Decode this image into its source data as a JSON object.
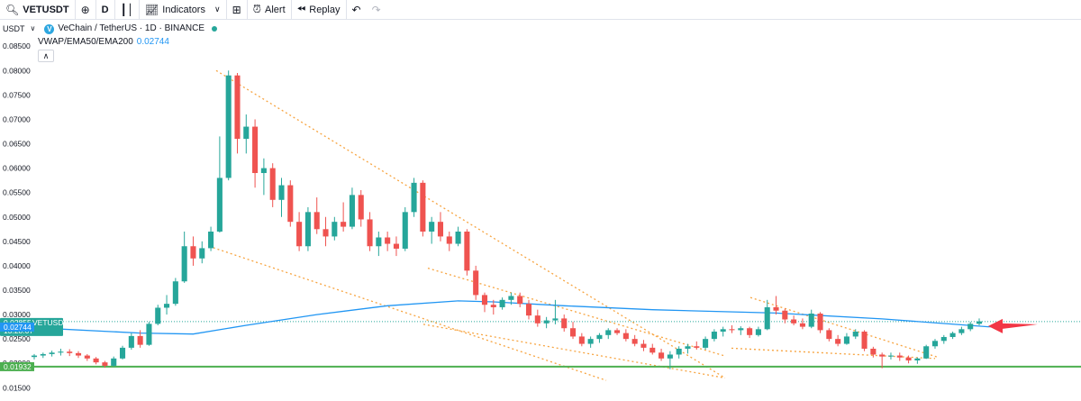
{
  "toolbar": {
    "symbol": "VETUSDT",
    "interval": "D",
    "indicators_label": "Indicators",
    "alert_label": "Alert",
    "replay_label": "Replay",
    "icons": [
      "search-icon",
      "add-symbol-icon",
      "chart-type-icon",
      "templates-icon",
      "alert-icon",
      "replay-icon",
      "undo-icon",
      "redo-icon"
    ]
  },
  "legend": {
    "ticker": "USDT",
    "title": "VeChain / TetherUS · 1D · BINANCE",
    "indicator_name": "VWAP/EMA50/EMA200",
    "indicator_value": "0.02744"
  },
  "colors": {
    "up": "#26a69a",
    "down": "#ef5350",
    "ema": "#2196f3",
    "trendline": "#f7a440",
    "support": "#4caf50",
    "arrow": "#f23645",
    "price_badge": "#26a69a"
  },
  "price_labels": {
    "current_price": "0.02855",
    "current_ticker": "VETUSDT",
    "countdown": "13:28:07",
    "ema_value": "0.02744",
    "support_value": "0.01932"
  },
  "chart_data": {
    "type": "candlestick",
    "ylim": [
      0.015,
      0.0855
    ],
    "y_ticks": [
      "0.08500",
      "0.08000",
      "0.07500",
      "0.07000",
      "0.06500",
      "0.06000",
      "0.05500",
      "0.05000",
      "0.04500",
      "0.04000",
      "0.03500",
      "0.03000",
      "0.02500",
      "0.02000",
      "0.01500"
    ],
    "support_level": 0.01932,
    "current_price": 0.02855,
    "ema_value": 0.02744,
    "candles": [
      [
        0.0213,
        0.0219,
        0.0208,
        0.0216
      ],
      [
        0.0216,
        0.0222,
        0.0211,
        0.0219
      ],
      [
        0.0219,
        0.0226,
        0.0214,
        0.0222
      ],
      [
        0.0222,
        0.023,
        0.0216,
        0.0224
      ],
      [
        0.0224,
        0.0229,
        0.0215,
        0.0221
      ],
      [
        0.0221,
        0.0225,
        0.0211,
        0.0216
      ],
      [
        0.0216,
        0.0219,
        0.0205,
        0.021
      ],
      [
        0.021,
        0.0213,
        0.0198,
        0.0202
      ],
      [
        0.0202,
        0.0205,
        0.0191,
        0.0195
      ],
      [
        0.0195,
        0.0214,
        0.0193,
        0.021
      ],
      [
        0.021,
        0.0236,
        0.0208,
        0.0232
      ],
      [
        0.0232,
        0.0262,
        0.0228,
        0.0256
      ],
      [
        0.0256,
        0.0268,
        0.0232,
        0.0238
      ],
      [
        0.0238,
        0.0285,
        0.0236,
        0.0281
      ],
      [
        0.0281,
        0.032,
        0.0278,
        0.0314
      ],
      [
        0.0314,
        0.034,
        0.03,
        0.0322
      ],
      [
        0.0322,
        0.0375,
        0.0318,
        0.0368
      ],
      [
        0.0368,
        0.047,
        0.0365,
        0.044
      ],
      [
        0.044,
        0.046,
        0.04,
        0.0415
      ],
      [
        0.0415,
        0.045,
        0.0405,
        0.0436
      ],
      [
        0.0436,
        0.048,
        0.043,
        0.047
      ],
      [
        0.047,
        0.0665,
        0.0468,
        0.058
      ],
      [
        0.058,
        0.08,
        0.0575,
        0.079
      ],
      [
        0.079,
        0.0795,
        0.063,
        0.066
      ],
      [
        0.066,
        0.071,
        0.063,
        0.0685
      ],
      [
        0.0685,
        0.07,
        0.056,
        0.059
      ],
      [
        0.059,
        0.062,
        0.0545,
        0.06
      ],
      [
        0.06,
        0.061,
        0.052,
        0.0535
      ],
      [
        0.0535,
        0.058,
        0.05,
        0.0565
      ],
      [
        0.0565,
        0.0575,
        0.048,
        0.049
      ],
      [
        0.049,
        0.051,
        0.043,
        0.044
      ],
      [
        0.044,
        0.052,
        0.043,
        0.051
      ],
      [
        0.051,
        0.054,
        0.0465,
        0.0475
      ],
      [
        0.0475,
        0.05,
        0.044,
        0.046
      ],
      [
        0.046,
        0.05,
        0.0452,
        0.049
      ],
      [
        0.049,
        0.053,
        0.047,
        0.048
      ],
      [
        0.048,
        0.056,
        0.0475,
        0.0545
      ],
      [
        0.0545,
        0.0555,
        0.048,
        0.0495
      ],
      [
        0.0495,
        0.051,
        0.043,
        0.044
      ],
      [
        0.044,
        0.047,
        0.042,
        0.0458
      ],
      [
        0.0458,
        0.047,
        0.043,
        0.0445
      ],
      [
        0.0445,
        0.046,
        0.042,
        0.0435
      ],
      [
        0.0435,
        0.052,
        0.043,
        0.051
      ],
      [
        0.051,
        0.058,
        0.05,
        0.057
      ],
      [
        0.057,
        0.0575,
        0.046,
        0.047
      ],
      [
        0.047,
        0.05,
        0.0445,
        0.049
      ],
      [
        0.049,
        0.051,
        0.045,
        0.046
      ],
      [
        0.046,
        0.047,
        0.043,
        0.0445
      ],
      [
        0.0445,
        0.048,
        0.044,
        0.047
      ],
      [
        0.047,
        0.0475,
        0.038,
        0.039
      ],
      [
        0.039,
        0.04,
        0.033,
        0.034
      ],
      [
        0.034,
        0.0345,
        0.0305,
        0.032
      ],
      [
        0.032,
        0.033,
        0.03,
        0.0315
      ],
      [
        0.0315,
        0.0335,
        0.031,
        0.033
      ],
      [
        0.033,
        0.0345,
        0.032,
        0.0338
      ],
      [
        0.0338,
        0.0345,
        0.0315,
        0.0322
      ],
      [
        0.0322,
        0.033,
        0.029,
        0.0298
      ],
      [
        0.0298,
        0.031,
        0.0275,
        0.0282
      ],
      [
        0.0282,
        0.0295,
        0.0272,
        0.0288
      ],
      [
        0.0288,
        0.033,
        0.028,
        0.0292
      ],
      [
        0.0292,
        0.03,
        0.0265,
        0.0272
      ],
      [
        0.0272,
        0.0285,
        0.025,
        0.0255
      ],
      [
        0.0255,
        0.0262,
        0.0235,
        0.024
      ],
      [
        0.024,
        0.0255,
        0.0232,
        0.025
      ],
      [
        0.025,
        0.0262,
        0.0242,
        0.0258
      ],
      [
        0.0258,
        0.0272,
        0.025,
        0.0268
      ],
      [
        0.0268,
        0.0272,
        0.0258,
        0.0262
      ],
      [
        0.0262,
        0.027,
        0.0245,
        0.025
      ],
      [
        0.025,
        0.0258,
        0.0235,
        0.024
      ],
      [
        0.024,
        0.0248,
        0.0225,
        0.0232
      ],
      [
        0.0232,
        0.024,
        0.0218,
        0.0222
      ],
      [
        0.0222,
        0.023,
        0.0205,
        0.021
      ],
      [
        0.021,
        0.0225,
        0.0188,
        0.0218
      ],
      [
        0.0218,
        0.0235,
        0.021,
        0.023
      ],
      [
        0.023,
        0.024,
        0.022,
        0.0235
      ],
      [
        0.0235,
        0.0245,
        0.0228,
        0.0232
      ],
      [
        0.0232,
        0.0255,
        0.0228,
        0.025
      ],
      [
        0.025,
        0.027,
        0.0245,
        0.0265
      ],
      [
        0.0265,
        0.0275,
        0.0255,
        0.027
      ],
      [
        0.027,
        0.0278,
        0.0262,
        0.0268
      ],
      [
        0.0268,
        0.0276,
        0.0258,
        0.0272
      ],
      [
        0.0272,
        0.0275,
        0.0252,
        0.0258
      ],
      [
        0.0258,
        0.0275,
        0.0255,
        0.027
      ],
      [
        0.027,
        0.033,
        0.0268,
        0.0315
      ],
      [
        0.0315,
        0.0338,
        0.03,
        0.0308
      ],
      [
        0.0308,
        0.0312,
        0.0282,
        0.029
      ],
      [
        0.029,
        0.0298,
        0.0278,
        0.0282
      ],
      [
        0.0282,
        0.0292,
        0.027,
        0.0275
      ],
      [
        0.0275,
        0.031,
        0.0272,
        0.0302
      ],
      [
        0.0302,
        0.0305,
        0.0262,
        0.0268
      ],
      [
        0.0268,
        0.0272,
        0.0245,
        0.025
      ],
      [
        0.025,
        0.0258,
        0.0235,
        0.024
      ],
      [
        0.024,
        0.0262,
        0.0238,
        0.0255
      ],
      [
        0.0255,
        0.027,
        0.025,
        0.0265
      ],
      [
        0.0265,
        0.0268,
        0.0225,
        0.023
      ],
      [
        0.023,
        0.0234,
        0.0212,
        0.0218
      ],
      [
        0.0218,
        0.0222,
        0.019,
        0.0214
      ],
      [
        0.0214,
        0.0222,
        0.0208,
        0.0216
      ],
      [
        0.0216,
        0.0222,
        0.0205,
        0.0212
      ],
      [
        0.0212,
        0.0216,
        0.02,
        0.0206
      ],
      [
        0.0206,
        0.0212,
        0.0199,
        0.021
      ],
      [
        0.021,
        0.0238,
        0.0209,
        0.0235
      ],
      [
        0.0235,
        0.025,
        0.023,
        0.0246
      ],
      [
        0.0246,
        0.0258,
        0.024,
        0.0254
      ],
      [
        0.0254,
        0.0265,
        0.025,
        0.0262
      ],
      [
        0.0262,
        0.0275,
        0.0258,
        0.027
      ],
      [
        0.027,
        0.0285,
        0.0266,
        0.0281
      ],
      [
        0.0281,
        0.0292,
        0.0278,
        0.0286
      ]
    ]
  }
}
